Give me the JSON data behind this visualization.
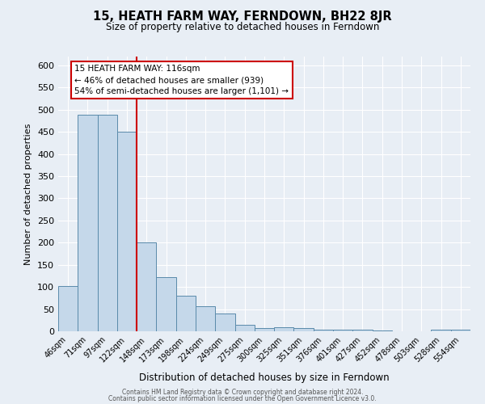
{
  "title": "15, HEATH FARM WAY, FERNDOWN, BH22 8JR",
  "subtitle": "Size of property relative to detached houses in Ferndown",
  "xlabel": "Distribution of detached houses by size in Ferndown",
  "ylabel": "Number of detached properties",
  "bar_color": "#c5d8ea",
  "bar_edge_color": "#5a8aaa",
  "background_color": "#e8eef5",
  "grid_color": "#ffffff",
  "bin_labels": [
    "46sqm",
    "71sqm",
    "97sqm",
    "122sqm",
    "148sqm",
    "173sqm",
    "198sqm",
    "224sqm",
    "249sqm",
    "275sqm",
    "300sqm",
    "325sqm",
    "351sqm",
    "376sqm",
    "401sqm",
    "427sqm",
    "452sqm",
    "478sqm",
    "503sqm",
    "528sqm",
    "554sqm"
  ],
  "bar_values": [
    103,
    488,
    488,
    450,
    200,
    122,
    80,
    57,
    40,
    15,
    8,
    10,
    8,
    3,
    3,
    3,
    1,
    0,
    0,
    3,
    3
  ],
  "vline_position": 3.5,
  "vline_color": "#cc0000",
  "ylim": [
    0,
    620
  ],
  "yticks": [
    0,
    50,
    100,
    150,
    200,
    250,
    300,
    350,
    400,
    450,
    500,
    550,
    600
  ],
  "annotation_line1": "15 HEATH FARM WAY: 116sqm",
  "annotation_line2": "← 46% of detached houses are smaller (939)",
  "annotation_line3": "54% of semi-detached houses are larger (1,101) →",
  "footer_line1": "Contains HM Land Registry data © Crown copyright and database right 2024.",
  "footer_line2": "Contains public sector information licensed under the Open Government Licence v3.0."
}
